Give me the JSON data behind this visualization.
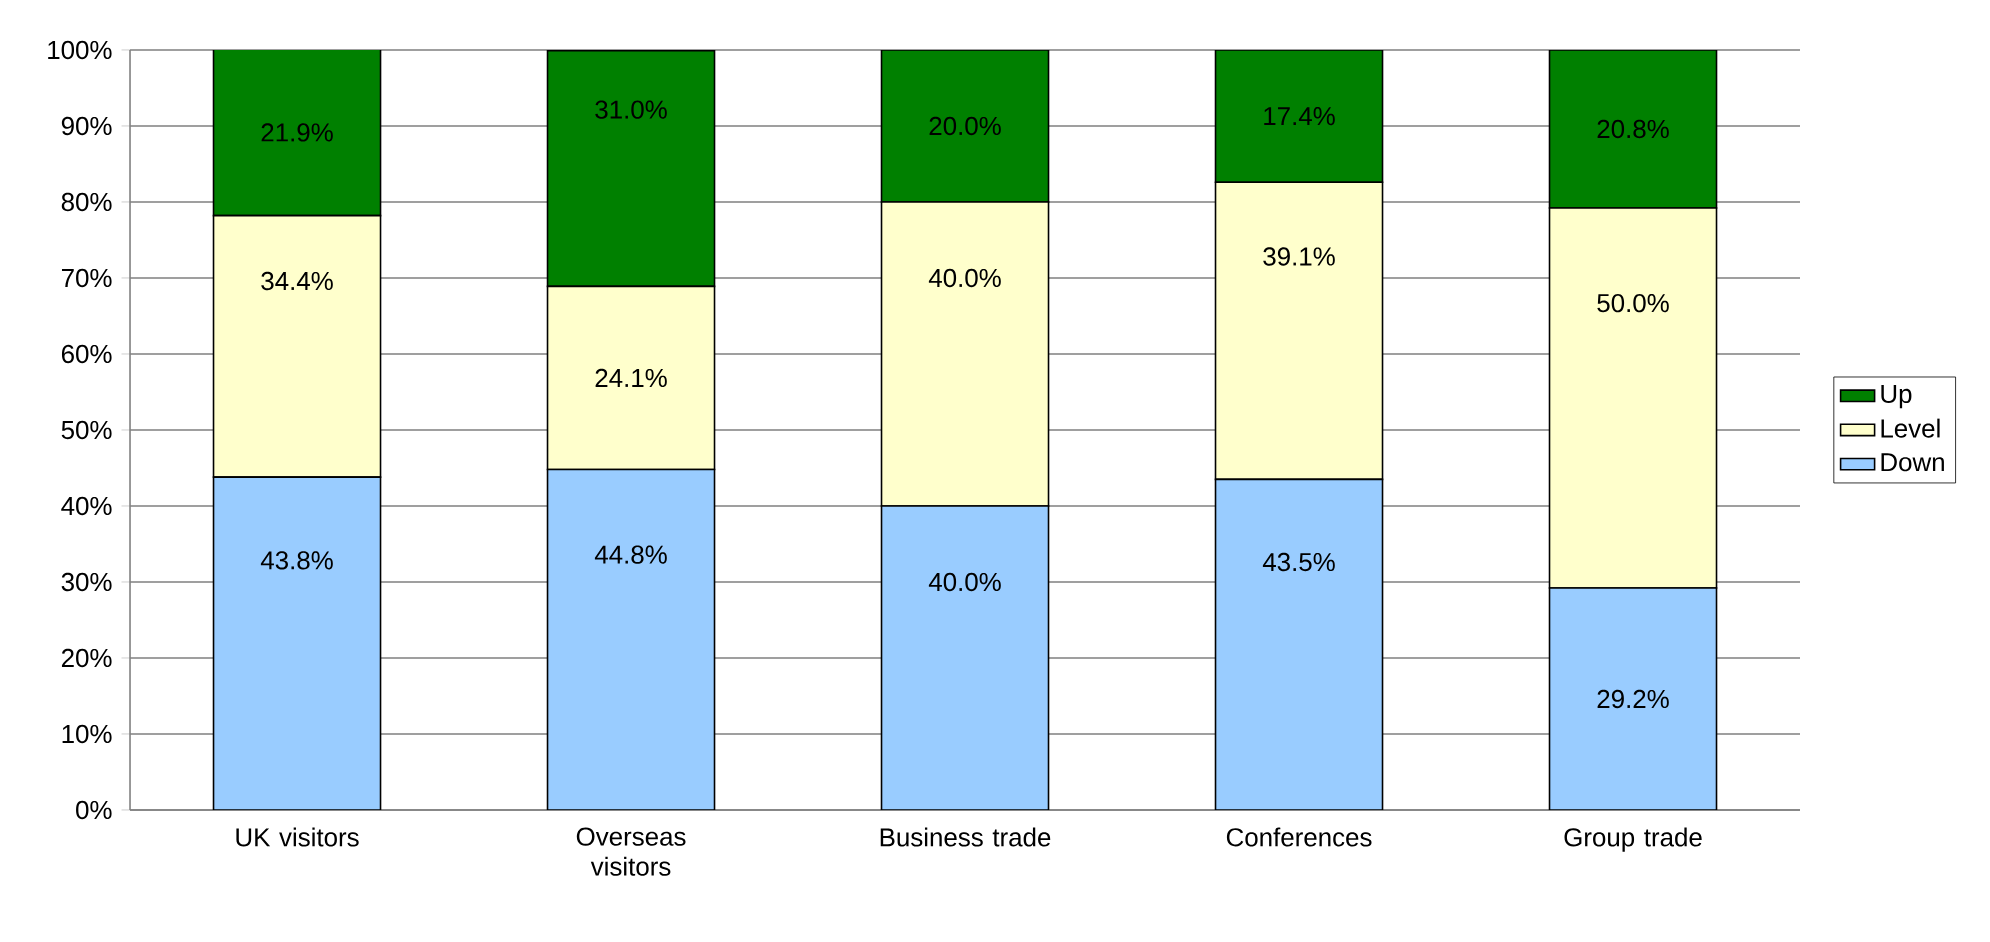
{
  "chart_data": {
    "type": "bar",
    "stacked": true,
    "categories": [
      "UK visitors",
      "Overseas visitors",
      "Business trade",
      "Conferences",
      "Group trade"
    ],
    "series": [
      {
        "name": "Down",
        "color": "#99ccff",
        "values": [
          43.8,
          44.8,
          40.0,
          43.5,
          29.2
        ],
        "value_labels": [
          "43.8%",
          "44.8%",
          "40.0%",
          "43.5%",
          "29.2%"
        ]
      },
      {
        "name": "Level",
        "color": "#ffffcc",
        "values": [
          34.4,
          24.1,
          40.0,
          39.1,
          50.0
        ],
        "value_labels": [
          "34.4%",
          "24.1%",
          "40.0%",
          "39.1%",
          "50.0%"
        ]
      },
      {
        "name": "Up",
        "color": "#008000",
        "values": [
          21.9,
          31.0,
          20.0,
          17.4,
          20.8
        ],
        "value_labels": [
          "21.9%",
          "31.0%",
          "20.0%",
          "17.4%",
          "20.8%"
        ]
      }
    ],
    "ylim": [
      0,
      100
    ],
    "yticks": [
      {
        "value": 0,
        "label": "0%"
      },
      {
        "value": 10,
        "label": "10%"
      },
      {
        "value": 20,
        "label": "20%"
      },
      {
        "value": 30,
        "label": "30%"
      },
      {
        "value": 40,
        "label": "40%"
      },
      {
        "value": 50,
        "label": "50%"
      },
      {
        "value": 60,
        "label": "60%"
      },
      {
        "value": 70,
        "label": "70%"
      },
      {
        "value": 80,
        "label": "80%"
      },
      {
        "value": 90,
        "label": "90%"
      },
      {
        "value": 100,
        "label": "100%"
      }
    ],
    "grid": "y",
    "legend": "right"
  }
}
